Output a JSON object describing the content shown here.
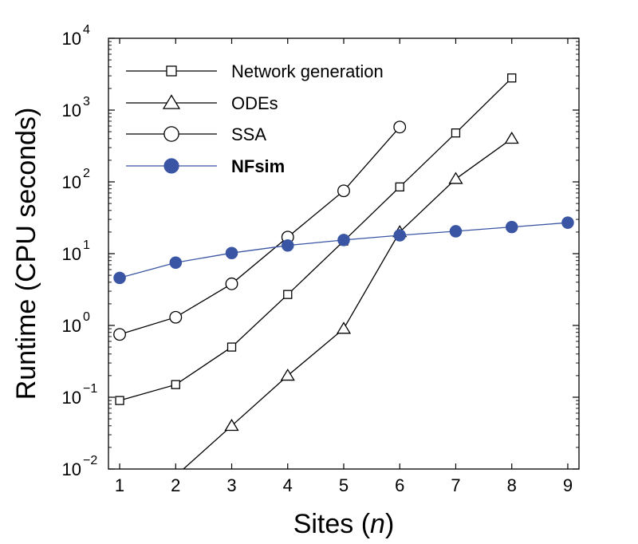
{
  "chart_data": {
    "type": "line",
    "xlabel_prefix": "Sites (",
    "xlabel_var": "n",
    "xlabel_suffix": ")",
    "ylabel": "Runtime (CPU seconds)",
    "xlim": [
      0.8,
      9.2
    ],
    "ylim_log10": [
      -2,
      4
    ],
    "y_scale": "log",
    "x_ticks": [
      1,
      2,
      3,
      4,
      5,
      6,
      7,
      8,
      9
    ],
    "y_ticks_exp": [
      -2,
      -1,
      0,
      1,
      2,
      3,
      4
    ],
    "y_tick_base": "10",
    "grid": false,
    "legend_position": "top-left",
    "series": [
      {
        "name": "Network generation",
        "marker": "square",
        "color": "#000000",
        "bold": false,
        "x": [
          1,
          2,
          3,
          4,
          5,
          6,
          7,
          8
        ],
        "y": [
          0.09,
          0.15,
          0.5,
          2.7,
          15,
          85,
          480,
          2800
        ]
      },
      {
        "name": "ODEs",
        "marker": "triangle",
        "color": "#000000",
        "bold": false,
        "x": [
          2,
          3,
          4,
          5,
          6,
          7,
          8
        ],
        "y": [
          0.008,
          0.04,
          0.2,
          0.9,
          20,
          110,
          400
        ]
      },
      {
        "name": "SSA",
        "marker": "circle",
        "color": "#000000",
        "bold": false,
        "x": [
          1,
          2,
          3,
          4,
          5,
          6
        ],
        "y": [
          0.75,
          1.3,
          3.8,
          17,
          75,
          580
        ]
      },
      {
        "name": "NFsim",
        "marker": "filled-circle",
        "color": "#3a55a4",
        "bold": true,
        "x": [
          1,
          2,
          3,
          4,
          5,
          6,
          7,
          8,
          9
        ],
        "y": [
          4.6,
          7.5,
          10.2,
          13,
          15.5,
          18,
          20.5,
          23.5,
          27
        ]
      }
    ]
  }
}
